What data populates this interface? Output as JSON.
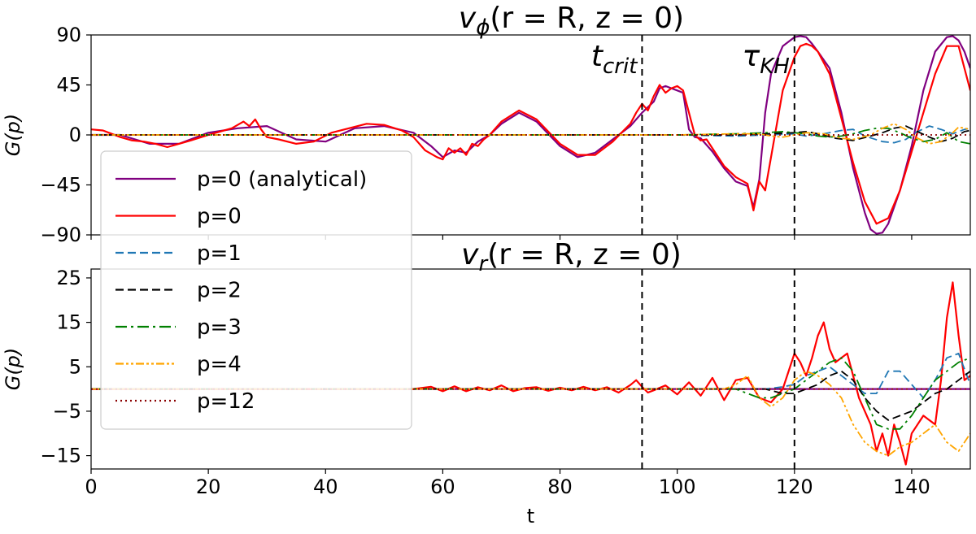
{
  "chart_data": [
    {
      "type": "line",
      "panel": "top",
      "title_parts": {
        "var": "v",
        "sub": "ϕ",
        "args": "(r = R, z = 0)"
      },
      "xlabel": "",
      "ylabel": "G(p)",
      "xlim": [
        0,
        150
      ],
      "ylim": [
        -90,
        90
      ],
      "xticks": [
        0,
        20,
        40,
        60,
        80,
        100,
        120,
        140
      ],
      "yticks": [
        90,
        45,
        0,
        -45,
        -90
      ],
      "ytick_labels": [
        "90",
        "45",
        "0",
        "−45",
        "−90"
      ],
      "vlines": [
        94,
        120
      ],
      "annotations": [
        {
          "base": "t",
          "sub": "crit",
          "x": 94
        },
        {
          "base": "τ",
          "sub": "KH",
          "x": 120
        }
      ],
      "series": [
        {
          "name": "p=0 (analytical)",
          "color": "#800080",
          "dash": "solid",
          "x": [
            0,
            5,
            10,
            15,
            20,
            25,
            30,
            35,
            40,
            45,
            50,
            55,
            58,
            60,
            62,
            64,
            66,
            68,
            70,
            73,
            76,
            80,
            83,
            86,
            89,
            92,
            94,
            96,
            97,
            98,
            99,
            100,
            101,
            102,
            103,
            104,
            106,
            108,
            110,
            112,
            113,
            114,
            115,
            116,
            118,
            120,
            121,
            122,
            123,
            124,
            126,
            128,
            130,
            132,
            133,
            134,
            135,
            136,
            138,
            140,
            142,
            144,
            146,
            147,
            148,
            149,
            150
          ],
          "y": [
            0,
            0,
            -8,
            -8,
            2,
            6,
            8,
            -4,
            -6,
            6,
            8,
            2,
            -10,
            -20,
            -14,
            -16,
            -6,
            0,
            10,
            20,
            12,
            -10,
            -20,
            -16,
            -4,
            8,
            20,
            30,
            42,
            44,
            42,
            40,
            38,
            5,
            -2,
            -3,
            -15,
            -30,
            -42,
            -46,
            -65,
            -40,
            20,
            55,
            80,
            88,
            89,
            88,
            82,
            75,
            60,
            20,
            -30,
            -70,
            -85,
            -89,
            -88,
            -80,
            -50,
            -10,
            40,
            75,
            88,
            89,
            85,
            75,
            60
          ]
        },
        {
          "name": "p=0",
          "color": "#ff0000",
          "dash": "solid",
          "x": [
            0,
            2,
            5,
            7,
            9,
            11,
            13,
            15,
            17,
            20,
            22,
            24,
            26,
            27,
            28,
            29,
            30,
            32,
            35,
            38,
            41,
            44,
            47,
            50,
            53,
            55,
            57,
            59,
            60,
            61,
            62,
            63,
            64,
            65,
            66,
            67,
            68,
            70,
            73,
            76,
            80,
            83,
            86,
            89,
            92,
            93,
            94,
            95,
            96,
            97,
            98,
            99,
            100,
            101,
            102,
            103,
            104,
            105,
            106,
            107,
            108,
            110,
            112,
            113,
            114,
            115,
            116,
            118,
            120,
            121,
            122,
            123,
            124,
            126,
            128,
            130,
            132,
            134,
            136,
            138,
            140,
            142,
            144,
            146,
            148,
            150
          ],
          "y": [
            5,
            4,
            -2,
            -5,
            -6,
            -8,
            -11,
            -8,
            -5,
            0,
            3,
            6,
            12,
            8,
            14,
            5,
            -2,
            -4,
            -8,
            -6,
            2,
            6,
            10,
            9,
            4,
            -2,
            -14,
            -20,
            -22,
            -12,
            -16,
            -12,
            -18,
            -8,
            -10,
            -4,
            0,
            12,
            22,
            14,
            -8,
            -18,
            -18,
            -6,
            10,
            20,
            28,
            22,
            35,
            45,
            38,
            42,
            44,
            40,
            20,
            0,
            -5,
            -4,
            -12,
            -20,
            -28,
            -38,
            -44,
            -68,
            -42,
            -50,
            -20,
            40,
            70,
            80,
            82,
            80,
            75,
            55,
            15,
            -25,
            -60,
            -80,
            -75,
            -50,
            -15,
            20,
            55,
            80,
            80,
            40
          ]
        },
        {
          "name": "p=1",
          "color": "#1f77b4",
          "dash": "10,5",
          "x": [
            0,
            100,
            110,
            115,
            120,
            122,
            125,
            128,
            130,
            132,
            135,
            137,
            139,
            141,
            143,
            145,
            147,
            149,
            150
          ],
          "y": [
            0,
            0,
            -1,
            0,
            1,
            -1,
            1,
            4,
            5,
            -1,
            -6,
            -7,
            -4,
            3,
            8,
            5,
            1,
            5,
            6
          ]
        },
        {
          "name": "p=2",
          "color": "#000000",
          "dash": "10,5",
          "x": [
            0,
            100,
            110,
            115,
            120,
            122,
            124,
            127,
            130,
            133,
            135,
            137,
            139,
            141,
            143,
            145,
            147,
            149,
            150
          ],
          "y": [
            0,
            0,
            0,
            1,
            2,
            3,
            1,
            -3,
            -5,
            -1,
            2,
            6,
            8,
            3,
            -2,
            -6,
            -3,
            3,
            4
          ]
        },
        {
          "name": "p=3",
          "color": "#008000",
          "dash": "14,5,3,5",
          "x": [
            0,
            100,
            110,
            115,
            118,
            120,
            122,
            124,
            126,
            128,
            130,
            132,
            134,
            136,
            138,
            140,
            142,
            144,
            146,
            148,
            150
          ],
          "y": [
            0,
            0,
            1,
            2,
            3,
            2,
            1,
            -1,
            -2,
            -1,
            1,
            4,
            6,
            6,
            2,
            -3,
            -6,
            -4,
            2,
            -6,
            -8
          ]
        },
        {
          "name": "p=4",
          "color": "#ffa500",
          "dash": "10,3,3,3,3,3",
          "x": [
            0,
            100,
            110,
            114,
            116,
            118,
            120,
            122,
            125,
            128,
            130,
            133,
            135,
            137,
            139,
            141,
            143,
            145,
            147,
            148,
            150
          ],
          "y": [
            0,
            0,
            1,
            1,
            -1,
            -2,
            0,
            2,
            1,
            -3,
            -4,
            0,
            6,
            10,
            5,
            -3,
            -8,
            -6,
            2,
            7,
            5
          ]
        },
        {
          "name": "p=12",
          "color": "#8b0000",
          "dash": "2,4",
          "x": [
            0,
            150
          ],
          "y": [
            0,
            0
          ]
        }
      ]
    },
    {
      "type": "line",
      "panel": "bottom",
      "title_parts": {
        "var": "v",
        "sub": "r",
        "args": "(r = R, z = 0)"
      },
      "xlabel": "t",
      "ylabel": "G(p)",
      "xlim": [
        0,
        150
      ],
      "ylim": [
        -18,
        27
      ],
      "xticks": [
        0,
        20,
        40,
        60,
        80,
        100,
        120,
        140
      ],
      "yticks": [
        25,
        15,
        5,
        -5,
        -15
      ],
      "ytick_labels": [
        "25",
        "15",
        "5",
        "−5",
        "−15"
      ],
      "vlines": [
        94,
        120
      ],
      "series": [
        {
          "name": "p=0 (analytical)",
          "color": "#800080",
          "dash": "solid",
          "x": [
            0,
            150
          ],
          "y": [
            0,
            0
          ]
        },
        {
          "name": "p=0",
          "color": "#ff0000",
          "dash": "solid",
          "x": [
            0,
            10,
            20,
            40,
            55,
            58,
            60,
            62,
            64,
            66,
            68,
            70,
            72,
            74,
            76,
            78,
            80,
            82,
            84,
            86,
            88,
            90,
            92,
            93,
            94,
            95,
            96,
            98,
            100,
            102,
            104,
            106,
            108,
            110,
            112,
            114,
            116,
            118,
            120,
            121,
            122,
            123,
            124,
            125,
            126,
            127,
            128,
            129,
            130,
            131,
            132,
            133,
            134,
            135,
            136,
            137,
            138,
            139,
            140,
            142,
            144,
            145,
            146,
            147,
            148,
            149,
            150
          ],
          "y": [
            0,
            0,
            0,
            0,
            0,
            0.5,
            -0.5,
            0.6,
            -0.5,
            0.4,
            -0.3,
            0.8,
            -0.5,
            0.2,
            0.4,
            -0.4,
            0.3,
            -0.3,
            0.5,
            -0.3,
            0.4,
            -0.8,
            0.9,
            2.0,
            0.5,
            -0.8,
            -0.3,
            0.8,
            -1.2,
            1.5,
            -1.5,
            2.5,
            -2.5,
            2.0,
            2.5,
            -2.0,
            -3.0,
            0,
            8,
            6,
            3,
            7,
            12,
            15,
            9,
            6,
            7,
            8,
            3,
            -2,
            -5,
            -8,
            -14,
            -10,
            -15,
            -8,
            -12,
            -17,
            -10,
            -6,
            -8,
            2,
            16,
            24,
            12,
            2,
            3
          ]
        },
        {
          "name": "p=1",
          "color": "#1f77b4",
          "dash": "10,5",
          "x": [
            0,
            100,
            110,
            115,
            118,
            120,
            122,
            124,
            126,
            128,
            130,
            132,
            134,
            136,
            138,
            140,
            142,
            144,
            146,
            148,
            150
          ],
          "y": [
            0,
            0,
            0,
            0,
            0.5,
            1,
            3,
            4,
            5,
            3,
            1,
            -1,
            -1,
            4,
            4,
            1,
            -2,
            2,
            7,
            8,
            1
          ]
        },
        {
          "name": "p=2",
          "color": "#000000",
          "dash": "10,5",
          "x": [
            0,
            100,
            110,
            115,
            118,
            120,
            122,
            124,
            126,
            128,
            130,
            132,
            134,
            136,
            138,
            140,
            142,
            144,
            146,
            148,
            150
          ],
          "y": [
            0,
            0,
            0,
            0,
            -1,
            -1,
            0,
            1,
            3,
            4,
            2,
            -2,
            -5,
            -7,
            -6,
            -5,
            -3,
            -1,
            0,
            2,
            4
          ]
        },
        {
          "name": "p=3",
          "color": "#008000",
          "dash": "14,5,3,5",
          "x": [
            0,
            100,
            110,
            112,
            114,
            116,
            118,
            120,
            122,
            124,
            126,
            128,
            130,
            132,
            134,
            136,
            138,
            140,
            142,
            144,
            146,
            148,
            150
          ],
          "y": [
            0,
            0,
            0,
            -1,
            -2,
            -2,
            -1,
            0,
            2,
            4,
            6,
            7,
            4,
            -2,
            -8,
            -9,
            -9,
            -6,
            -2,
            2,
            4,
            6,
            7
          ]
        },
        {
          "name": "p=4",
          "color": "#ffa500",
          "dash": "10,3,3,3,3,3",
          "x": [
            0,
            100,
            108,
            110,
            112,
            114,
            116,
            118,
            120,
            122,
            124,
            126,
            128,
            130,
            132,
            134,
            136,
            138,
            140,
            142,
            144,
            146,
            148,
            150
          ],
          "y": [
            0,
            0,
            0,
            1,
            3,
            -2,
            -4,
            -2,
            2,
            4,
            3,
            1,
            -2,
            -8,
            -12,
            -14,
            -15,
            -13,
            -12,
            -10,
            -8,
            -12,
            -14,
            -10
          ]
        },
        {
          "name": "p=12",
          "color": "#8b0000",
          "dash": "2,4",
          "x": [
            0,
            150
          ],
          "y": [
            0,
            0
          ]
        }
      ]
    }
  ],
  "legend": [
    {
      "label": "p=0 (analytical)",
      "color": "#800080",
      "dash": "solid"
    },
    {
      "label": "p=0",
      "color": "#ff0000",
      "dash": "solid"
    },
    {
      "label": "p=1",
      "color": "#1f77b4",
      "dash": "10,5"
    },
    {
      "label": "p=2",
      "color": "#000000",
      "dash": "10,5"
    },
    {
      "label": "p=3",
      "color": "#008000",
      "dash": "14,5,3,5"
    },
    {
      "label": "p=4",
      "color": "#ffa500",
      "dash": "10,3,3,3,3,3"
    },
    {
      "label": "p=12",
      "color": "#8b0000",
      "dash": "2,4"
    }
  ]
}
